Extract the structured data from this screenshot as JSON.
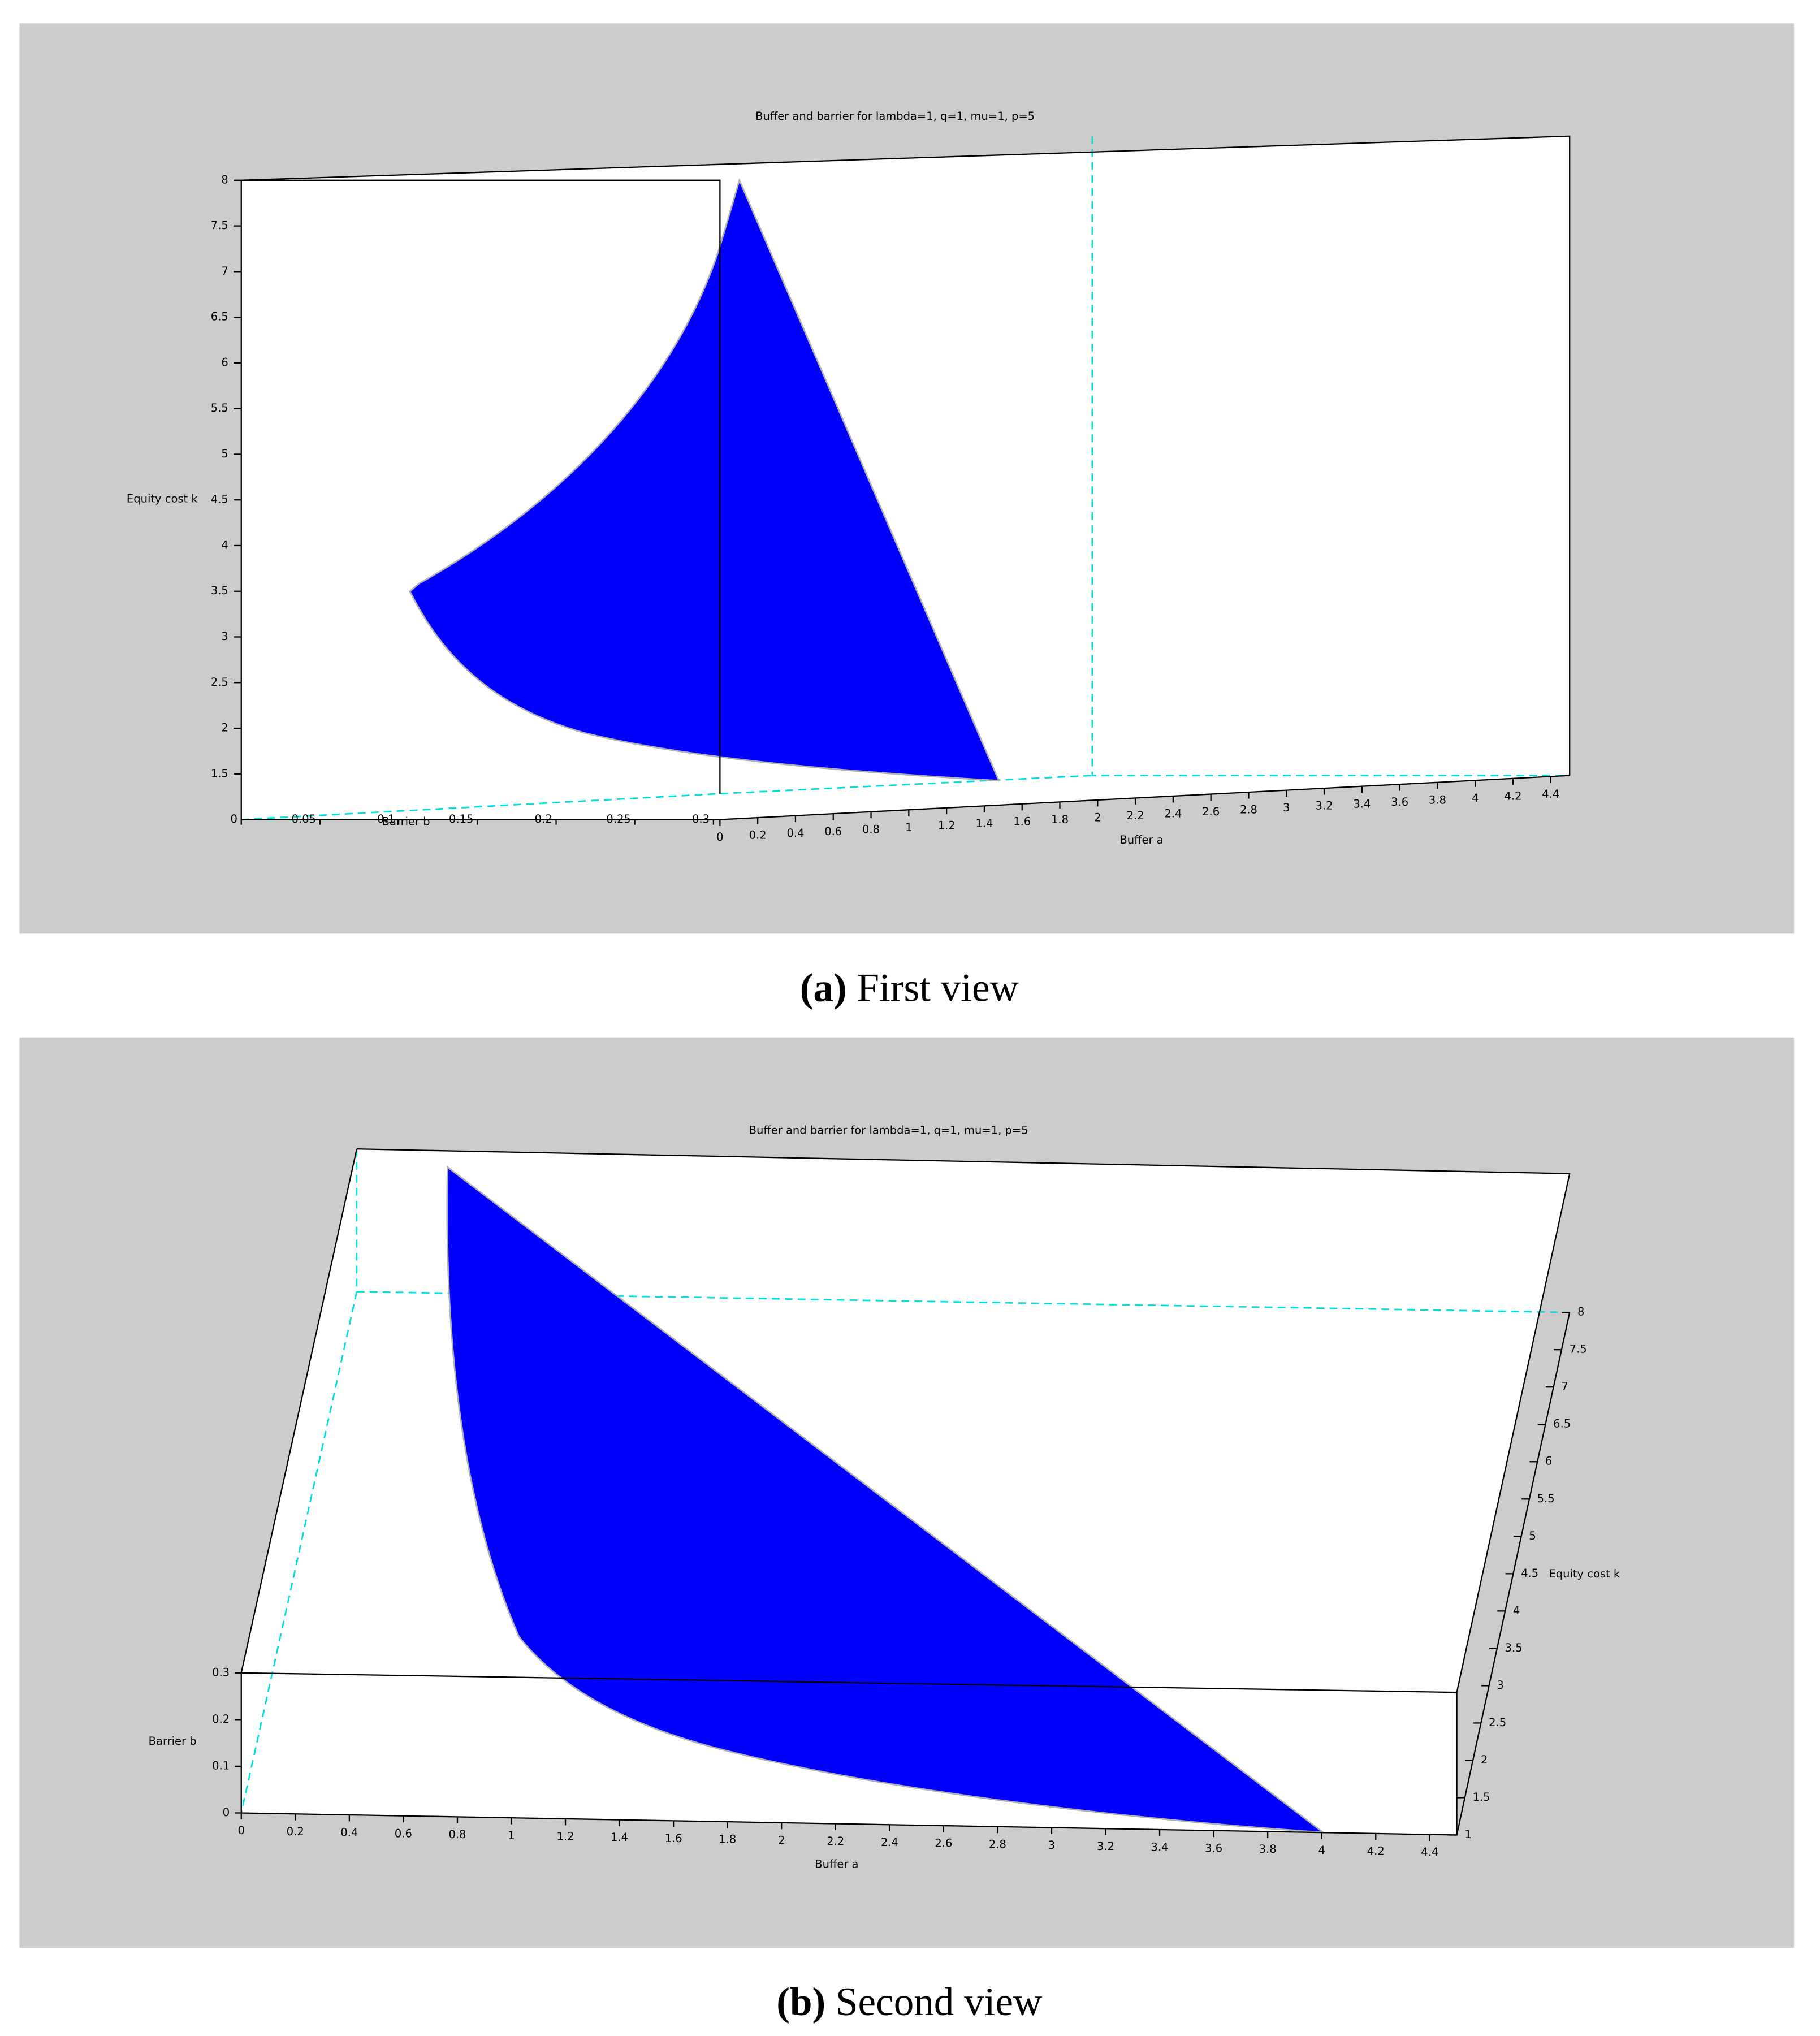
{
  "chart_data": [
    {
      "type": "surface3d",
      "title": "Buffer and barrier for lambda=1, q=1, mu=1, p=5",
      "xlabel": "Buffer a",
      "ylabel": "Barrier b",
      "zlabel": "Equity cost k",
      "xlim": [
        0,
        4.5
      ],
      "xticks": [
        0,
        0.2,
        0.4,
        0.6,
        0.8,
        1,
        1.2,
        1.4,
        1.6,
        1.8,
        2,
        2.2,
        2.4,
        2.6,
        2.8,
        3,
        3.2,
        3.4,
        3.6,
        3.8,
        4,
        4.2,
        4.4
      ],
      "ylim": [
        0,
        0.3
      ],
      "yticks": [
        0,
        0.05,
        0.1,
        0.15,
        0.2,
        0.25,
        0.3
      ],
      "zlim": [
        1,
        8
      ],
      "zticks": [
        1.5,
        2,
        2.5,
        3,
        3.5,
        4,
        4.5,
        5,
        5.5,
        6,
        6.5,
        7,
        7.5,
        8
      ],
      "color": "#0000ff",
      "grid": false,
      "caption_label": "(a)",
      "caption": "First view"
    },
    {
      "type": "surface3d",
      "title": "Buffer and barrier for lambda=1, q=1, mu=1, p=5",
      "xlabel": "Buffer a",
      "ylabel": "Barrier b",
      "zlabel": "Equity cost k",
      "xlim": [
        0,
        4.5
      ],
      "xticks": [
        0,
        0.2,
        0.4,
        0.6,
        0.8,
        1,
        1.2,
        1.4,
        1.6,
        1.8,
        2,
        2.2,
        2.4,
        2.6,
        2.8,
        3,
        3.2,
        3.4,
        3.6,
        3.8,
        4,
        4.2,
        4.4
      ],
      "ylim": [
        0,
        0.3
      ],
      "yticks": [
        0,
        0.1,
        0.2,
        0.3
      ],
      "zlim": [
        1,
        8
      ],
      "zticks": [
        1,
        1.5,
        2,
        2.5,
        3,
        3.5,
        4,
        4.5,
        5,
        5.5,
        6,
        6.5,
        7,
        7.5,
        8
      ],
      "color": "#0000ff",
      "grid": false,
      "caption_label": "(b)",
      "caption": "Second view"
    }
  ]
}
